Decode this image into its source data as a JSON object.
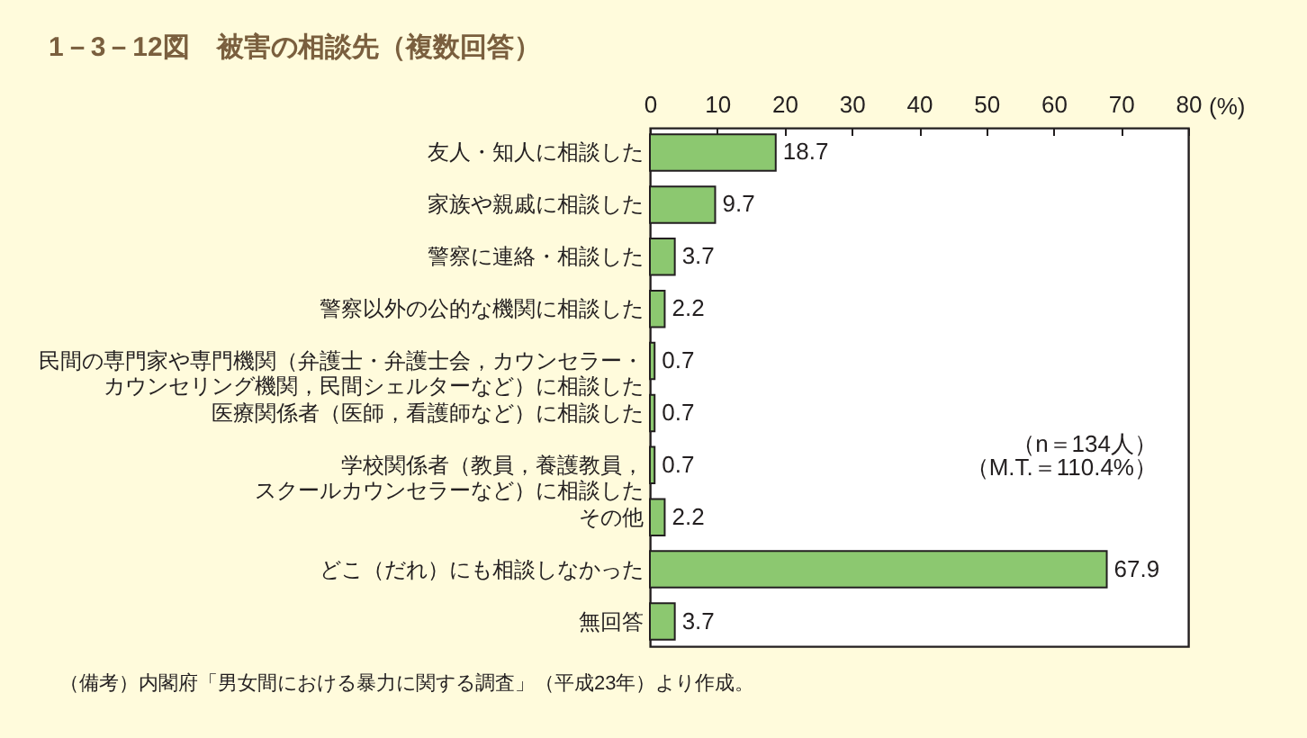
{
  "chart_data": {
    "type": "bar",
    "orientation": "horizontal",
    "title": "1－3－12図　被害の相談先（複数回答）",
    "xlabel": "(%)",
    "categories": [
      "友人・知人に相談した",
      "家族や親戚に相談した",
      "警察に連絡・相談した",
      "警察以外の公的な機関に相談した",
      "民間の専門家や専門機関（弁護士・弁護士会，カウンセラー・カウンセリング機関，民間シェルターなど）に相談した",
      "医療関係者（医師，看護師など）に相談した",
      "学校関係者（教員，養護教員，スクールカウンセラーなど）に相談した",
      "その他",
      "どこ（だれ）にも相談しなかった",
      "無回答"
    ],
    "values": [
      18.7,
      9.7,
      3.7,
      2.2,
      0.7,
      0.7,
      0.7,
      2.2,
      67.9,
      3.7
    ],
    "color": "#8cc870",
    "xlim": [
      0,
      80
    ],
    "xticks": [
      0,
      10,
      20,
      30,
      40,
      50,
      60,
      70,
      80
    ],
    "data_labels": true,
    "annotations": [
      "（n＝134人）",
      "（M.T.＝110.4%）",
      "（備考）内閣府「男女間における暴力に関する調査」（平成23年）より作成。"
    ]
  }
}
